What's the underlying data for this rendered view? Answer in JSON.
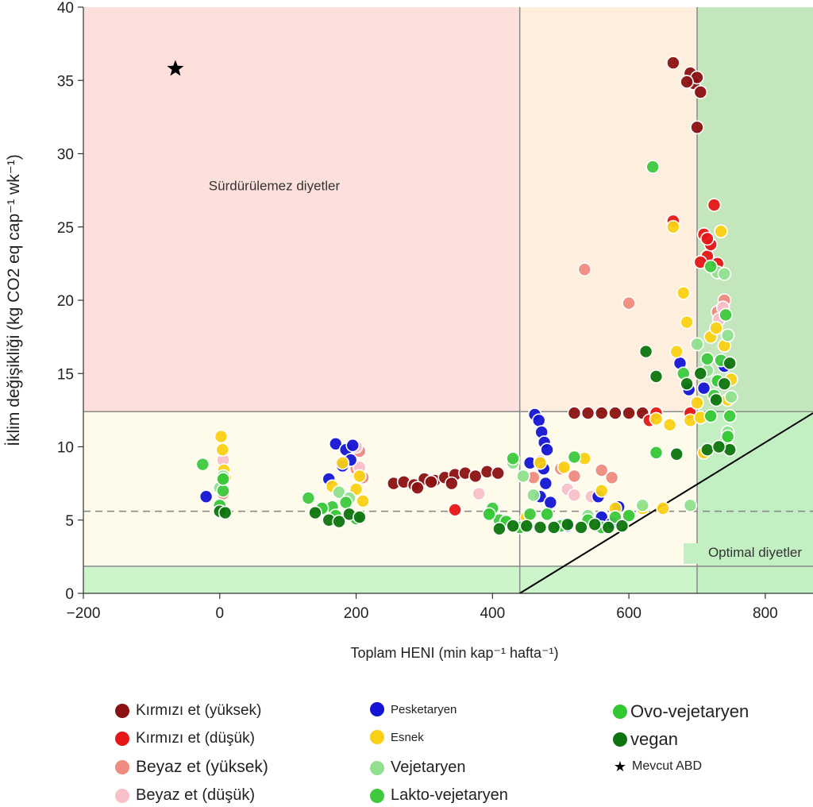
{
  "chart_data": {
    "type": "scatter",
    "title": "",
    "xlabel": "Toplam HENI (min kap⁻¹ hafta⁻¹)",
    "ylabel": "İklim değişikliği (kg CO2 eq cap⁻¹ wk⁻¹)",
    "xlim": [
      -200,
      870
    ],
    "ylim": [
      0,
      40
    ],
    "xticks": [
      -200,
      0,
      200,
      400,
      600,
      800
    ],
    "yticks": [
      0,
      5,
      10,
      15,
      20,
      25,
      30,
      35,
      40
    ],
    "xtick_labels": [
      "−200",
      "0",
      "200",
      "400",
      "600",
      "800"
    ],
    "ytick_labels": [
      "0",
      "5",
      "10",
      "15",
      "20",
      "25",
      "30",
      "35",
      "40"
    ],
    "grid": false,
    "legend_position": "bottom",
    "thresholds": {
      "x": [
        440,
        700
      ],
      "y": [
        1.85,
        12.4
      ],
      "dashed_y": 5.6
    },
    "diagonal_line": [
      [
        440,
        0
      ],
      [
        870,
        12.3
      ]
    ],
    "region_colors": {
      "unsustainable": "#fde0dc",
      "mid_band": "#fefbea",
      "orange_band": "#fdeede",
      "green_light": "#ccf5cc",
      "green_right_top": "#c4e6bd",
      "green_right_bottom": "#c2f0c2"
    },
    "annotations": [
      {
        "text": "Sürdürülemez diyetler",
        "x": 80,
        "y": 27.5
      },
      {
        "text": "Optimal diyetler",
        "x": 785,
        "y": 2.5
      }
    ],
    "series": [
      {
        "name": "Kırmızı et (yüksek)",
        "color": "#8b1111",
        "points": [
          [
            255,
            7.5
          ],
          [
            270,
            7.6
          ],
          [
            285,
            7.4
          ],
          [
            300,
            7.8
          ],
          [
            315,
            7.7
          ],
          [
            330,
            7.9
          ],
          [
            345,
            8.1
          ],
          [
            360,
            8.2
          ],
          [
            375,
            8.0
          ],
          [
            392,
            8.3
          ],
          [
            408,
            8.2
          ],
          [
            290,
            7.2
          ],
          [
            310,
            7.6
          ],
          [
            340,
            7.5
          ],
          [
            520,
            12.3
          ],
          [
            540,
            12.3
          ],
          [
            560,
            12.3
          ],
          [
            580,
            12.3
          ],
          [
            600,
            12.3
          ],
          [
            620,
            12.3
          ],
          [
            665,
            36.2
          ],
          [
            690,
            35.5
          ],
          [
            695,
            34.8
          ],
          [
            700,
            35.2
          ],
          [
            705,
            34.2
          ],
          [
            700,
            31.8
          ],
          [
            685,
            34.9
          ]
        ]
      },
      {
        "name": "Kırmızı et (düşük)",
        "color": "#e61616",
        "points": [
          [
            345,
            5.7
          ],
          [
            630,
            11.8
          ],
          [
            665,
            25.4
          ],
          [
            710,
            24.5
          ],
          [
            715,
            23.0
          ],
          [
            720,
            23.8
          ],
          [
            725,
            26.5
          ],
          [
            730,
            22.5
          ],
          [
            705,
            22.6
          ],
          [
            715,
            24.2
          ],
          [
            690,
            12.3
          ],
          [
            640,
            12.3
          ]
        ]
      },
      {
        "name": "Beyaz et (yüksek)",
        "color": "#ef8b80",
        "points": [
          [
            5,
            6.8
          ],
          [
            200,
            8.5
          ],
          [
            205,
            9.7
          ],
          [
            210,
            7.9
          ],
          [
            460,
            7.9
          ],
          [
            500,
            8.5
          ],
          [
            520,
            8.0
          ],
          [
            535,
            22.1
          ],
          [
            560,
            8.4
          ],
          [
            575,
            7.9
          ],
          [
            600,
            19.8
          ],
          [
            740,
            20.0
          ],
          [
            730,
            19.2
          ]
        ]
      },
      {
        "name": "Beyaz et (düşük)",
        "color": "#f9c0c9",
        "points": [
          [
            5,
            9.1
          ],
          [
            200,
            10.0
          ],
          [
            205,
            8.6
          ],
          [
            380,
            6.8
          ],
          [
            510,
            7.1
          ],
          [
            520,
            6.7
          ],
          [
            545,
            6.6
          ],
          [
            738,
            19.5
          ],
          [
            732,
            18.7
          ]
        ]
      },
      {
        "name": "Pesketaryen",
        "color": "#1414d4",
        "points": [
          [
            -20,
            6.6
          ],
          [
            160,
            7.8
          ],
          [
            170,
            10.2
          ],
          [
            185,
            9.8
          ],
          [
            195,
            10.1
          ],
          [
            192,
            9.1
          ],
          [
            180,
            8.7
          ],
          [
            455,
            8.9
          ],
          [
            462,
            12.2
          ],
          [
            468,
            11.8
          ],
          [
            472,
            11.0
          ],
          [
            476,
            10.3
          ],
          [
            480,
            9.8
          ],
          [
            470,
            9.0
          ],
          [
            475,
            8.5
          ],
          [
            478,
            7.5
          ],
          [
            470,
            6.6
          ],
          [
            485,
            6.2
          ],
          [
            510,
            4.6
          ],
          [
            555,
            6.6
          ],
          [
            560,
            5.2
          ],
          [
            575,
            4.8
          ],
          [
            585,
            5.9
          ],
          [
            675,
            15.7
          ],
          [
            688,
            13.9
          ],
          [
            710,
            14.0
          ],
          [
            740,
            15.5
          ]
        ]
      },
      {
        "name": "Esnek",
        "color": "#fad014",
        "points": [
          [
            2,
            10.7
          ],
          [
            4,
            9.8
          ],
          [
            6,
            8.4
          ],
          [
            8,
            7.9
          ],
          [
            165,
            7.3
          ],
          [
            180,
            8.9
          ],
          [
            205,
            8.0
          ],
          [
            210,
            6.3
          ],
          [
            200,
            7.1
          ],
          [
            450,
            5.2
          ],
          [
            470,
            8.9
          ],
          [
            505,
            8.6
          ],
          [
            535,
            9.2
          ],
          [
            560,
            7.0
          ],
          [
            580,
            5.8
          ],
          [
            620,
            5.8
          ],
          [
            640,
            11.9
          ],
          [
            650,
            5.8
          ],
          [
            660,
            11.5
          ],
          [
            665,
            25.0
          ],
          [
            670,
            16.5
          ],
          [
            680,
            20.5
          ],
          [
            685,
            18.5
          ],
          [
            690,
            11.8
          ],
          [
            700,
            13.0
          ],
          [
            705,
            12.0
          ],
          [
            710,
            9.6
          ],
          [
            720,
            17.5
          ],
          [
            728,
            18.1
          ],
          [
            735,
            24.7
          ],
          [
            740,
            16.9
          ],
          [
            745,
            13.2
          ],
          [
            750,
            14.6
          ]
        ]
      },
      {
        "name": "Vejetaryen",
        "color": "#90e090",
        "points": [
          [
            0,
            7.2
          ],
          [
            5,
            8.0
          ],
          [
            175,
            6.9
          ],
          [
            190,
            6.5
          ],
          [
            430,
            8.9
          ],
          [
            445,
            8.0
          ],
          [
            460,
            6.7
          ],
          [
            500,
            4.7
          ],
          [
            540,
            5.3
          ],
          [
            620,
            6.0
          ],
          [
            690,
            6.0
          ],
          [
            700,
            17.0
          ],
          [
            715,
            15.2
          ],
          [
            730,
            21.9
          ],
          [
            740,
            21.8
          ],
          [
            745,
            17.6
          ],
          [
            745,
            11.0
          ],
          [
            750,
            13.4
          ]
        ]
      },
      {
        "name": "Lakto-vejetaryen",
        "color": "#3ec93e",
        "points": [
          [
            -25,
            8.8
          ],
          [
            5,
            7.0
          ],
          [
            130,
            6.5
          ],
          [
            165,
            5.9
          ],
          [
            185,
            6.2
          ],
          [
            400,
            5.8
          ],
          [
            410,
            5.0
          ],
          [
            430,
            9.2
          ],
          [
            455,
            5.4
          ],
          [
            520,
            9.3
          ],
          [
            540,
            5.0
          ],
          [
            580,
            5.2
          ],
          [
            635,
            29.1
          ],
          [
            680,
            15.0
          ],
          [
            720,
            22.3
          ],
          [
            715,
            16.0
          ],
          [
            735,
            15.9
          ],
          [
            742,
            19.0
          ],
          [
            748,
            12.1
          ],
          [
            742,
            10.3
          ],
          [
            725,
            13.5
          ]
        ]
      },
      {
        "name": "Ovo-vejetaryen",
        "color": "#34c734",
        "points": [
          [
            0,
            6.0
          ],
          [
            5,
            7.8
          ],
          [
            150,
            5.8
          ],
          [
            170,
            5.3
          ],
          [
            200,
            5.1
          ],
          [
            395,
            5.4
          ],
          [
            420,
            4.9
          ],
          [
            440,
            4.5
          ],
          [
            480,
            5.4
          ],
          [
            500,
            4.6
          ],
          [
            560,
            4.5
          ],
          [
            600,
            5.3
          ],
          [
            640,
            9.6
          ],
          [
            720,
            12.1
          ],
          [
            730,
            14.5
          ],
          [
            745,
            10.7
          ]
        ]
      },
      {
        "name": "vegan",
        "color": "#0e750e",
        "points": [
          [
            0,
            5.6
          ],
          [
            8,
            5.5
          ],
          [
            140,
            5.5
          ],
          [
            160,
            5.0
          ],
          [
            175,
            4.9
          ],
          [
            190,
            5.4
          ],
          [
            205,
            5.2
          ],
          [
            410,
            4.4
          ],
          [
            430,
            4.6
          ],
          [
            450,
            4.6
          ],
          [
            470,
            4.5
          ],
          [
            490,
            4.5
          ],
          [
            510,
            4.7
          ],
          [
            530,
            4.5
          ],
          [
            550,
            4.7
          ],
          [
            570,
            4.5
          ],
          [
            590,
            4.6
          ],
          [
            625,
            16.5
          ],
          [
            640,
            14.8
          ],
          [
            670,
            9.5
          ],
          [
            685,
            14.3
          ],
          [
            705,
            15.0
          ],
          [
            715,
            9.8
          ],
          [
            728,
            13.2
          ],
          [
            740,
            14.3
          ],
          [
            748,
            15.7
          ],
          [
            748,
            9.8
          ],
          [
            732,
            10.0
          ]
        ]
      },
      {
        "name": "Mevcut ABD",
        "color": "#000000",
        "marker": "star",
        "points": [
          [
            -65,
            35.8
          ]
        ]
      }
    ]
  },
  "legend": {
    "items": [
      {
        "label": "Kırmızı et (yüksek)",
        "color": "#8b1111",
        "marker": "circle"
      },
      {
        "label": "Kırmızı et (düşük)",
        "color": "#e61616",
        "marker": "circle"
      },
      {
        "label": "Beyaz et (yüksek)",
        "color": "#ef8b80",
        "marker": "circle"
      },
      {
        "label": "Beyaz et (düşük)",
        "color": "#f9c0c9",
        "marker": "circle"
      },
      {
        "label": "Pesketaryen",
        "color": "#1414d4",
        "marker": "circle"
      },
      {
        "label": "Esnek",
        "color": "#fad014",
        "marker": "circle"
      },
      {
        "label": "Vejetaryen",
        "color": "#90e090",
        "marker": "circle"
      },
      {
        "label": "Lakto-vejetaryen",
        "color": "#3ec93e",
        "marker": "circle"
      },
      {
        "label": "Ovo-vejetaryen",
        "color": "#34c734",
        "marker": "circle"
      },
      {
        "label": "vegan",
        "color": "#0e750e",
        "marker": "circle"
      },
      {
        "label": "Mevcut ABD",
        "color": "#000000",
        "marker": "star"
      }
    ]
  }
}
